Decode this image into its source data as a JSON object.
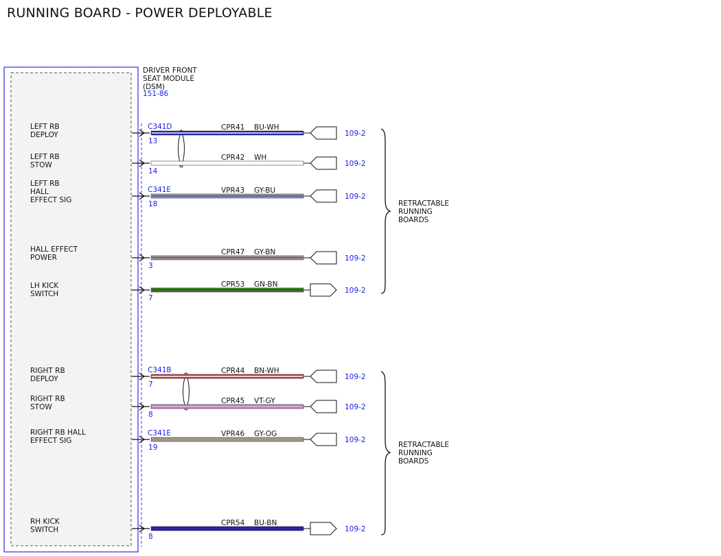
{
  "title": "RUNNING BOARD - POWER DEPLOYABLE",
  "module": {
    "name_lines": [
      "DRIVER FRONT",
      "SEAT MODULE",
      "(DSM)"
    ],
    "ref": "151-86"
  },
  "circuits": [
    {
      "label_lines": [
        "LEFT RB",
        "DEPLOY"
      ],
      "connector": "C341D",
      "pin": "13",
      "circuit": "CPR41",
      "color_code": "BU-WH",
      "colors": [
        "#1c1cb4",
        "#ffffff"
      ],
      "ref": "109-2",
      "connector_shape": "female"
    },
    {
      "label_lines": [
        "LEFT RB",
        "STOW"
      ],
      "connector": "",
      "pin": "14",
      "circuit": "CPR42",
      "color_code": "WH",
      "colors": [
        "#ffffff",
        "#ffffff"
      ],
      "ref": "109-2",
      "connector_shape": "female"
    },
    {
      "label_lines": [
        "LEFT RB",
        "HALL",
        "EFFECT SIG"
      ],
      "connector": "C341E",
      "pin": "18",
      "circuit": "VPR43",
      "color_code": "GY-BU",
      "colors": [
        "#9a9a9a",
        "#3a4fc8"
      ],
      "ref": "109-2",
      "connector_shape": "female"
    },
    {
      "label_lines": [
        "HALL EFFECT",
        "POWER"
      ],
      "connector": "",
      "pin": "3",
      "circuit": "CPR47",
      "color_code": "GY-BN",
      "colors": [
        "#9a9a9a",
        "#8b4a3a"
      ],
      "ref": "109-2",
      "connector_shape": "female"
    },
    {
      "label_lines": [
        "LH KICK",
        "SWITCH"
      ],
      "connector": "",
      "pin": "7",
      "circuit": "CPR53",
      "color_code": "GN-BN",
      "colors": [
        "#2a8a1a",
        "#5a3a1a"
      ],
      "ref": "109-2",
      "connector_shape": "male"
    },
    {
      "label_lines": [
        "RIGHT RB",
        "DEPLOY"
      ],
      "connector": "C341B",
      "pin": "7",
      "circuit": "CPR44",
      "color_code": "BN-WH",
      "colors": [
        "#b83a3a",
        "#ffffff"
      ],
      "ref": "109-2",
      "connector_shape": "female"
    },
    {
      "label_lines": [
        "RIGHT RB",
        "STOW"
      ],
      "connector": "",
      "pin": "8",
      "circuit": "CPR45",
      "color_code": "VT-GY",
      "colors": [
        "#d070d8",
        "#c8c8c8"
      ],
      "ref": "109-2",
      "connector_shape": "female"
    },
    {
      "label_lines": [
        "RIGHT RB HALL",
        "EFFECT SIG"
      ],
      "connector": "C341E",
      "pin": "19",
      "circuit": "VPR46",
      "color_code": "GY-OG",
      "colors": [
        "#9a9a9a",
        "#c8902a"
      ],
      "ref": "109-2",
      "connector_shape": "female"
    },
    {
      "label_lines": [
        "RH KICK",
        "SWITCH"
      ],
      "connector": "",
      "pin": "8",
      "circuit": "CPR54",
      "color_code": "BU-BN",
      "colors": [
        "#1c1cb4",
        "#3a2a9a"
      ],
      "ref": "109-2",
      "connector_shape": "male"
    }
  ],
  "groups": [
    {
      "label_lines": [
        "RETRACTABLE",
        "RUNNING",
        "BOARDS"
      ]
    },
    {
      "label_lines": [
        "RETRACTABLE",
        "RUNNING",
        "BOARDS"
      ]
    }
  ]
}
